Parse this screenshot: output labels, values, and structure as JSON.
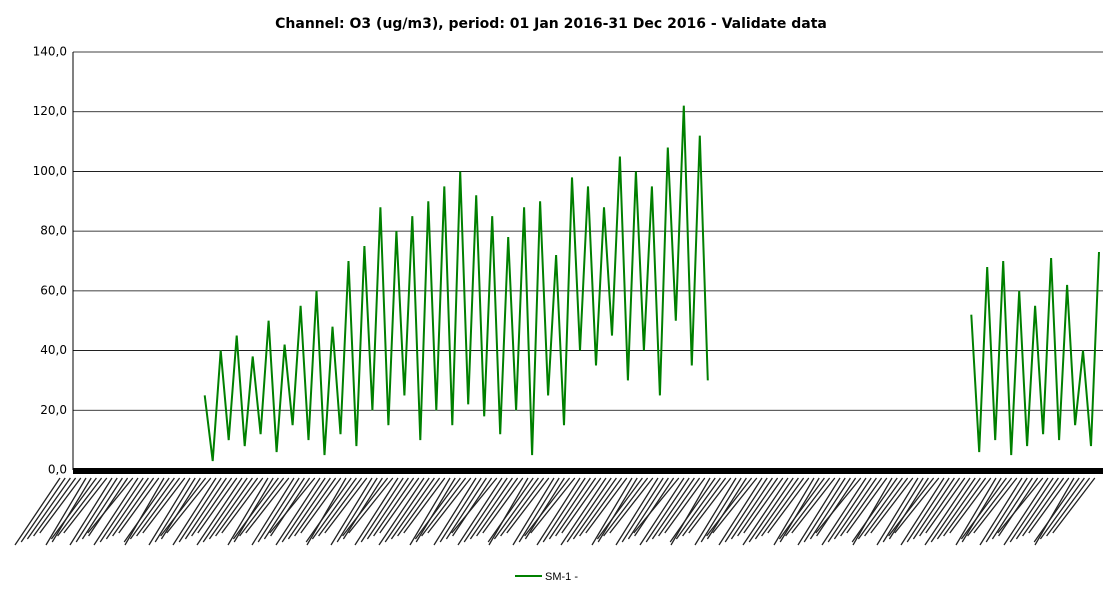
{
  "chart_data": {
    "type": "line",
    "title": "Channel: O3 (ug/m3), period: 01 Jan 2016-31 Dec 2016 - Validate data",
    "series": [
      {
        "name": "SM-1 -",
        "color": "#008000",
        "values": [
          null,
          null,
          null,
          null,
          null,
          null,
          null,
          null,
          null,
          null,
          null,
          null,
          null,
          null,
          null,
          null,
          25,
          3,
          40,
          10,
          45,
          8,
          38,
          12,
          50,
          6,
          42,
          15,
          55,
          10,
          60,
          5,
          48,
          12,
          70,
          8,
          75,
          20,
          88,
          15,
          80,
          25,
          85,
          10,
          90,
          20,
          95,
          15,
          100,
          22,
          92,
          18,
          85,
          12,
          78,
          20,
          88,
          5,
          90,
          25,
          72,
          15,
          98,
          40,
          95,
          35,
          88,
          45,
          105,
          30,
          100,
          40,
          95,
          25,
          108,
          50,
          122,
          35,
          112,
          30,
          null,
          null,
          null,
          null,
          null,
          null,
          null,
          null,
          null,
          null,
          null,
          null,
          null,
          null,
          null,
          null,
          null,
          null,
          null,
          null,
          null,
          null,
          null,
          null,
          null,
          null,
          null,
          null,
          null,
          null,
          null,
          null,
          52,
          6,
          68,
          10,
          70,
          5,
          60,
          8,
          55,
          12,
          71,
          10,
          62,
          15,
          40,
          8,
          73
        ]
      }
    ],
    "ylim": [
      0,
      140
    ],
    "yticks": [
      {
        "value": 0,
        "label": "0,0"
      },
      {
        "value": 20,
        "label": "20,0"
      },
      {
        "value": 40,
        "label": "40,0"
      },
      {
        "value": 60,
        "label": "60,0"
      },
      {
        "value": 80,
        "label": "80,0"
      },
      {
        "value": 100,
        "label": "100,0"
      },
      {
        "value": 120,
        "label": "120,0"
      },
      {
        "value": 140,
        "label": "140,0"
      }
    ],
    "grid": true
  }
}
